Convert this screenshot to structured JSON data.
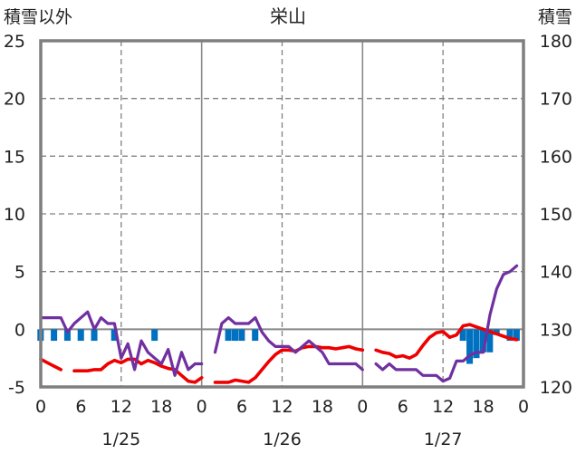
{
  "chart_data": {
    "type": "line",
    "title": "栄山",
    "y_left_label": "積雪以外",
    "y_right_label": "積雪",
    "y_left_range": [
      -5,
      25
    ],
    "y_right_range": [
      120,
      180
    ],
    "y_left_ticks": [
      -5,
      0,
      5,
      10,
      15,
      20,
      25
    ],
    "y_right_ticks": [
      120,
      130,
      140,
      150,
      160,
      170,
      180
    ],
    "x_range_hours": [
      0,
      72
    ],
    "x_tick_labels": [
      "0",
      "6",
      "12",
      "18",
      "0",
      "6",
      "12",
      "18",
      "0",
      "6",
      "12",
      "18",
      "0"
    ],
    "date_labels": [
      "1/25",
      "1/26",
      "1/27"
    ],
    "colors": {
      "temperature": "#ee0000",
      "snow_depth": "#7030a0",
      "precipitation": "#0070c0",
      "frame": "#7f7f7f",
      "grid": "#808080"
    },
    "series": [
      {
        "key": "temperature",
        "axis": "left",
        "segments": [
          [
            [
              0,
              -2.6
            ],
            [
              1,
              -2.9
            ],
            [
              2,
              -3.2
            ],
            [
              3,
              -3.5
            ]
          ],
          [
            [
              5,
              -3.6
            ],
            [
              6,
              -3.6
            ],
            [
              7,
              -3.6
            ],
            [
              8,
              -3.5
            ],
            [
              9,
              -3.5
            ],
            [
              10,
              -3.0
            ],
            [
              11,
              -2.7
            ],
            [
              12,
              -2.9
            ],
            [
              13,
              -2.6
            ],
            [
              14,
              -2.6
            ],
            [
              15,
              -3.0
            ],
            [
              16,
              -2.7
            ],
            [
              17,
              -2.9
            ],
            [
              18,
              -3.2
            ],
            [
              19,
              -3.4
            ],
            [
              20,
              -3.5
            ],
            [
              21,
              -4.0
            ],
            [
              22,
              -4.5
            ],
            [
              23,
              -4.6
            ],
            [
              24,
              -4.2
            ]
          ],
          [
            [
              26,
              -4.6
            ],
            [
              27,
              -4.6
            ],
            [
              28,
              -4.6
            ],
            [
              29,
              -4.4
            ],
            [
              30,
              -4.5
            ],
            [
              31,
              -4.6
            ],
            [
              32,
              -4.2
            ],
            [
              33,
              -3.5
            ],
            [
              34,
              -2.8
            ],
            [
              35,
              -2.2
            ],
            [
              36,
              -1.8
            ],
            [
              37,
              -1.8
            ],
            [
              38,
              -1.9
            ],
            [
              39,
              -1.6
            ],
            [
              40,
              -1.5
            ],
            [
              41,
              -1.5
            ],
            [
              42,
              -1.6
            ],
            [
              43,
              -1.6
            ],
            [
              44,
              -1.7
            ],
            [
              45,
              -1.6
            ],
            [
              46,
              -1.5
            ],
            [
              47,
              -1.7
            ],
            [
              48,
              -1.8
            ]
          ],
          [
            [
              50,
              -1.8
            ],
            [
              51,
              -2.0
            ],
            [
              52,
              -2.1
            ],
            [
              53,
              -2.4
            ],
            [
              54,
              -2.3
            ],
            [
              55,
              -2.5
            ],
            [
              56,
              -2.2
            ],
            [
              57,
              -1.4
            ],
            [
              58,
              -0.7
            ],
            [
              59,
              -0.3
            ],
            [
              60,
              -0.2
            ],
            [
              61,
              -0.7
            ],
            [
              62,
              -0.5
            ],
            [
              63,
              0.3
            ],
            [
              64,
              0.4
            ],
            [
              65,
              0.2
            ],
            [
              66,
              0.0
            ],
            [
              67,
              -0.2
            ],
            [
              68,
              -0.4
            ],
            [
              69,
              -0.6
            ],
            [
              70,
              -0.8
            ],
            [
              71,
              -0.9
            ]
          ]
        ]
      },
      {
        "key": "snow_depth",
        "axis": "right",
        "segments": [
          [
            [
              0,
              132
            ],
            [
              1,
              132
            ],
            [
              2,
              132
            ],
            [
              3,
              132
            ],
            [
              4,
              129.5
            ],
            [
              5,
              131
            ],
            [
              6,
              132
            ],
            [
              7,
              133
            ],
            [
              8,
              130
            ],
            [
              9,
              132
            ],
            [
              10,
              131
            ],
            [
              11,
              131
            ],
            [
              12,
              125
            ],
            [
              13,
              127.5
            ],
            [
              14,
              123
            ],
            [
              15,
              128
            ],
            [
              16,
              126
            ],
            [
              17,
              125
            ],
            [
              18,
              124
            ],
            [
              19,
              126.5
            ],
            [
              20,
              122
            ],
            [
              21,
              126
            ],
            [
              22,
              123
            ],
            [
              23,
              124
            ],
            [
              24,
              124
            ]
          ],
          [
            [
              26,
              126
            ],
            [
              27,
              131
            ],
            [
              28,
              132
            ],
            [
              29,
              131
            ],
            [
              30,
              131
            ],
            [
              31,
              131
            ],
            [
              32,
              132
            ],
            [
              33,
              129.5
            ],
            [
              34,
              128
            ],
            [
              35,
              127
            ],
            [
              36,
              127
            ],
            [
              37,
              127
            ],
            [
              38,
              126
            ],
            [
              39,
              127
            ],
            [
              40,
              128
            ],
            [
              41,
              127
            ],
            [
              42,
              126
            ],
            [
              43,
              124
            ],
            [
              44,
              124
            ],
            [
              45,
              124
            ],
            [
              46,
              124
            ],
            [
              47,
              124
            ],
            [
              48,
              123
            ]
          ],
          [
            [
              50,
              124
            ],
            [
              51,
              123
            ],
            [
              52,
              124
            ],
            [
              53,
              123
            ],
            [
              54,
              123
            ],
            [
              55,
              123
            ],
            [
              56,
              123
            ],
            [
              57,
              122
            ],
            [
              58,
              122
            ],
            [
              59,
              122
            ],
            [
              60,
              121
            ],
            [
              61,
              121.5
            ],
            [
              62,
              124.5
            ],
            [
              63,
              124.5
            ],
            [
              64,
              125.5
            ],
            [
              65,
              126
            ],
            [
              66,
              126
            ],
            [
              67,
              132.5
            ],
            [
              68,
              137
            ],
            [
              69,
              139.5
            ],
            [
              70,
              140
            ],
            [
              71,
              141
            ]
          ]
        ]
      },
      {
        "key": "precipitation",
        "axis": "left",
        "type": "bar_from_zero",
        "points": [
          [
            0,
            -1.0
          ],
          [
            2,
            -1.0
          ],
          [
            4,
            -1.0
          ],
          [
            6,
            -1.0
          ],
          [
            8,
            -1.0
          ],
          [
            11,
            -1.0
          ],
          [
            17,
            -1.0
          ],
          [
            28,
            -1.0
          ],
          [
            29,
            -1.0
          ],
          [
            30,
            -1.0
          ],
          [
            32,
            -1.0
          ],
          [
            63,
            -1.0
          ],
          [
            64,
            -3.0
          ],
          [
            65,
            -2.5
          ],
          [
            66,
            -2.0
          ],
          [
            67,
            -2.0
          ],
          [
            68,
            -0.5
          ],
          [
            70,
            -1.0
          ],
          [
            71,
            -1.0
          ]
        ]
      }
    ]
  }
}
